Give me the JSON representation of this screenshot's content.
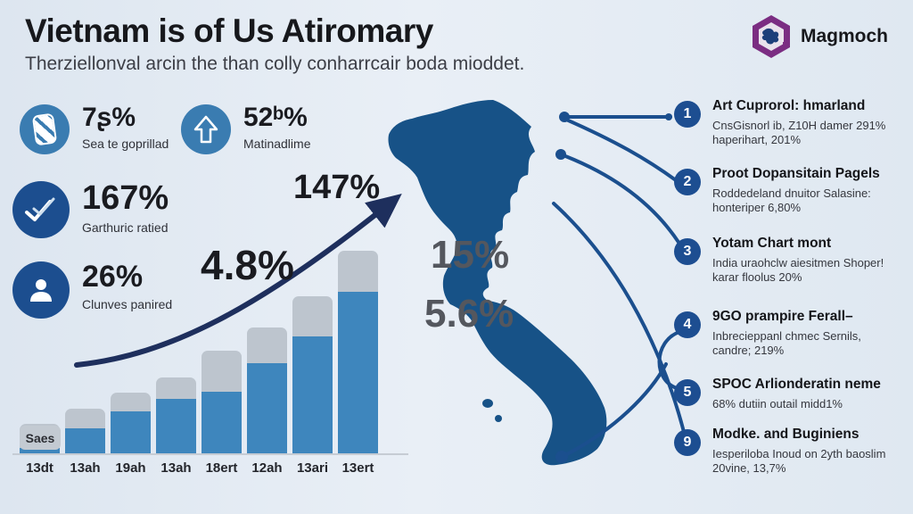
{
  "header": {
    "title": "Vietnam is of Us Atiromary",
    "subtitle": "Therziellonval arcin the than colly conharrcair boda mioddet."
  },
  "logo": {
    "text": "Magmoch",
    "icon": "hexagon-logo-icon",
    "color": "#7b2d82"
  },
  "stats": [
    {
      "icon": "stripe-badge-icon",
      "icon_color": "#3a7cb1",
      "value": "7ʂ%",
      "label": "Sea te goprillad"
    },
    {
      "icon": "arrow-up-icon",
      "icon_color": "#3a7cb1",
      "value": "52ᵇ%",
      "label": "Matinadlime"
    },
    {
      "icon": "double-check-icon",
      "icon_color": "#1c4e8f",
      "value": "167%",
      "label": "Garthuric ratied"
    },
    {
      "icon": "person-icon",
      "icon_color": "#1c4e8f",
      "value": "26%",
      "label": "Clunves panired"
    }
  ],
  "callouts": {
    "rate": "4.8%",
    "growth": "147%",
    "mid1": "15%",
    "mid2": "5.6%"
  },
  "chart_data": {
    "type": "bar",
    "stacked": true,
    "title": "",
    "xlabel": "",
    "ylabel": "",
    "bar_label": "Saes",
    "categories": [
      "13dt",
      "13ah",
      "19ah",
      "13ah",
      "18ert",
      "12ah",
      "13ari",
      "13ert"
    ],
    "series": [
      {
        "name": "lower-blue-segment",
        "color": "#3e86bd",
        "values": [
          7,
          29,
          48,
          62,
          70,
          102,
          132,
          182
        ]
      },
      {
        "name": "upper-gray-segment",
        "color": "#bdc5ce",
        "values": [
          27,
          22,
          21,
          24,
          46,
          40,
          45,
          46
        ]
      }
    ],
    "units": "relative pixel heights (no y-axis scale shown)",
    "ylim": [
      0,
      240
    ],
    "annotations": [
      "4.8%",
      "147%"
    ],
    "trend_arrow": "up-right curved arrow"
  },
  "map": {
    "name": "vietnam-map-silhouette",
    "color": "#175287",
    "labels": [
      "15%",
      "5.6%"
    ]
  },
  "list": [
    {
      "number": "1",
      "title": "Art Cuprorol: hmarland",
      "body": "CnsGisnorl ib, Z10H damer 291% haperihart, 201%"
    },
    {
      "number": "2",
      "title": "Proot Dopansitain Pagels",
      "body": "Roddedeland dnuitor Salasine: honteriper 6,80%"
    },
    {
      "number": "3",
      "title": "Yotam Chart mont",
      "body": "India uraohclw aiesitmen Shoper! karar floolus 20%"
    },
    {
      "number": "4",
      "title": "9GO prampire Ferall–",
      "body": "Inbrecieppanl chmec Sernils, candre; 219%"
    },
    {
      "number": "5",
      "title": "SPOC Arlionderatin neme",
      "body": "68% dutiin outail midd1%"
    },
    {
      "number": "9",
      "title": "Modke. and Buginiens",
      "body": "Iesperiloba Inoud on 2yth baoslim 20vine, 13,7%"
    }
  ]
}
